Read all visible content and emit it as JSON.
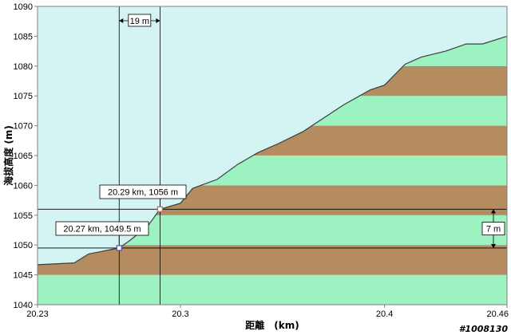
{
  "chart_data": {
    "type": "area",
    "xlabel": "距離　(km)",
    "ylabel": "海拔高度 (m)",
    "xlim": [
      20.23,
      20.46
    ],
    "ylim": [
      1040,
      1090
    ],
    "x_ticks": [
      "20.23",
      "20.3",
      "20.4",
      "20.46"
    ],
    "x_tick_values": [
      20.23,
      20.3,
      20.4,
      20.46
    ],
    "y_ticks": [
      "1040",
      "1045",
      "1050",
      "1055",
      "1060",
      "1065",
      "1070",
      "1075",
      "1080",
      "1085",
      "1090"
    ],
    "y_tick_values": [
      1040,
      1045,
      1050,
      1055,
      1060,
      1065,
      1070,
      1075,
      1080,
      1085,
      1090
    ],
    "band_size_m": 5,
    "grid": false,
    "series": [
      {
        "x": [
          20.23,
          20.248,
          20.255,
          20.27,
          20.275,
          20.284,
          20.29,
          20.3,
          20.306,
          20.318,
          20.328,
          20.338,
          20.348,
          20.36,
          20.38,
          20.393,
          20.4,
          20.41,
          20.418,
          20.43,
          20.44,
          20.448,
          20.46
        ],
        "y": [
          1046.7,
          1047,
          1048.5,
          1049.5,
          1050.7,
          1053.2,
          1056,
          1057,
          1059.5,
          1061,
          1063.5,
          1065.5,
          1067,
          1069,
          1073.5,
          1076,
          1076.8,
          1080.3,
          1081.5,
          1082.5,
          1083.7,
          1083.7,
          1085
        ]
      }
    ],
    "markers": [
      {
        "x": 20.27,
        "y": 1049.5,
        "label": "20.27 km, 1049.5 m",
        "color": "#5a5aa8"
      },
      {
        "x": 20.29,
        "y": 1056,
        "label": "20.29 km, 1056 m",
        "color": "#d06a6a"
      }
    ],
    "dx_label": "19 m",
    "dy_label": "7 m"
  },
  "colors": {
    "sky": "#d4f3f3",
    "band_light": "#9df2c1",
    "band_dark": "#b48c5f",
    "profile_line": "#3d3d3d",
    "measure_line": "#000000"
  },
  "watermark": "#1008130"
}
